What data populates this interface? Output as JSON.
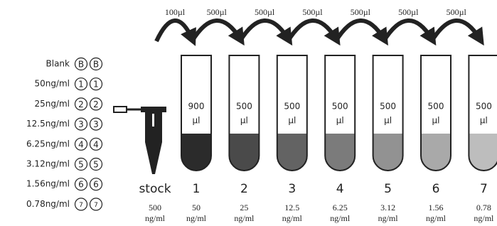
{
  "plate_legend": [
    {
      "label": "Blank",
      "wells": [
        "B",
        "B"
      ]
    },
    {
      "label": "50ng/ml",
      "wells": [
        "1",
        "1"
      ]
    },
    {
      "label": "25ng/ml",
      "wells": [
        "2",
        "2"
      ]
    },
    {
      "label": "12.5ng/ml",
      "wells": [
        "3",
        "3"
      ]
    },
    {
      "label": "6.25ng/ml",
      "wells": [
        "4",
        "4"
      ]
    },
    {
      "label": "3.12ng/ml",
      "wells": [
        "5",
        "5"
      ]
    },
    {
      "label": "1.56ng/ml",
      "wells": [
        "6",
        "6"
      ]
    },
    {
      "label": "0.78ng/ml",
      "wells": [
        "7",
        "7"
      ]
    }
  ],
  "transfers": [
    "100µl",
    "500µl",
    "500µl",
    "500µl",
    "500µl",
    "500µl",
    "500µl"
  ],
  "stock": {
    "label": "stock",
    "concentration": "500",
    "concentration_unit": "ng/ml"
  },
  "tubes": [
    {
      "label": "1",
      "volume": "900",
      "volume_unit": "µl",
      "concentration": "50",
      "concentration_unit": "ng/ml",
      "color": "#2b2b2b"
    },
    {
      "label": "2",
      "volume": "500",
      "volume_unit": "µl",
      "concentration": "25",
      "concentration_unit": "ng/ml",
      "color": "#4a4a4a"
    },
    {
      "label": "3",
      "volume": "500",
      "volume_unit": "µl",
      "concentration": "12.5",
      "concentration_unit": "ng/ml",
      "color": "#636363"
    },
    {
      "label": "4",
      "volume": "500",
      "volume_unit": "µl",
      "concentration": "6.25",
      "concentration_unit": "ng/ml",
      "color": "#7b7b7b"
    },
    {
      "label": "5",
      "volume": "500",
      "volume_unit": "µl",
      "concentration": "3.12",
      "concentration_unit": "ng/ml",
      "color": "#929292"
    },
    {
      "label": "6",
      "volume": "500",
      "volume_unit": "µl",
      "concentration": "1.56",
      "concentration_unit": "ng/ml",
      "color": "#a9a9a9"
    },
    {
      "label": "7",
      "volume": "500",
      "volume_unit": "µl",
      "concentration": "0.78",
      "concentration_unit": "ng/ml",
      "color": "#bdbdbd"
    }
  ]
}
